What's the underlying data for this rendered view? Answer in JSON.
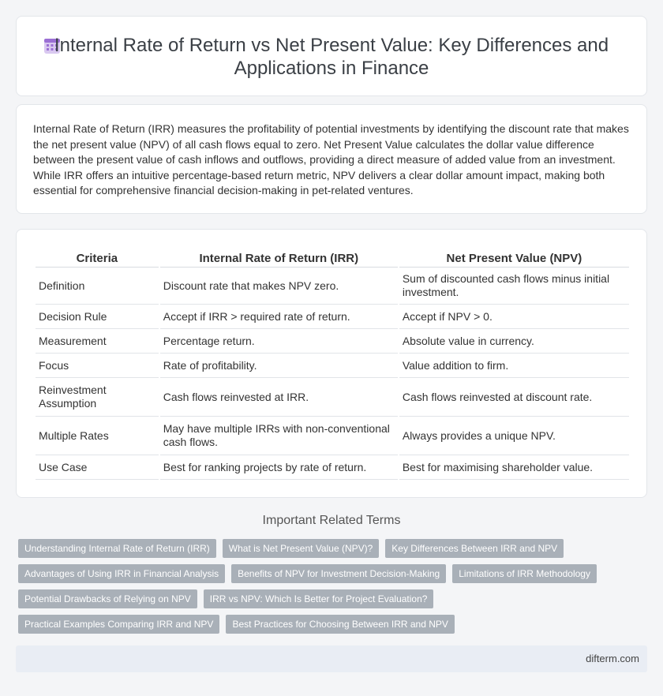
{
  "header": {
    "icon": "calendar-grid-icon",
    "title": "Internal Rate of Return vs Net Present Value: Key Differences and Applications in Finance"
  },
  "intro": {
    "text": "Internal Rate of Return (IRR) measures the profitability of potential investments by identifying the discount rate that makes the net present value (NPV) of all cash flows equal to zero. Net Present Value calculates the dollar value difference between the present value of cash inflows and outflows, providing a direct measure of added value from an investment. While IRR offers an intuitive percentage-based return metric, NPV delivers a clear dollar amount impact, making both essential for comprehensive financial decision-making in pet-related ventures."
  },
  "table": {
    "headers": [
      "Criteria",
      "Internal Rate of Return (IRR)",
      "Net Present Value (NPV)"
    ],
    "rows": [
      [
        "Definition",
        "Discount rate that makes NPV zero.",
        "Sum of discounted cash flows minus initial investment."
      ],
      [
        "Decision Rule",
        "Accept if IRR > required rate of return.",
        "Accept if NPV > 0."
      ],
      [
        "Measurement",
        "Percentage return.",
        "Absolute value in currency."
      ],
      [
        "Focus",
        "Rate of profitability.",
        "Value addition to firm."
      ],
      [
        "Reinvestment Assumption",
        "Cash flows reinvested at IRR.",
        "Cash flows reinvested at discount rate."
      ],
      [
        "Multiple Rates",
        "May have multiple IRRs with non-conventional cash flows.",
        "Always provides a unique NPV."
      ],
      [
        "Use Case",
        "Best for ranking projects by rate of return.",
        "Best for maximising shareholder value."
      ]
    ]
  },
  "related": {
    "title": "Important Related Terms",
    "tags": [
      "Understanding Internal Rate of Return (IRR)",
      "What is Net Present Value (NPV)?",
      "Key Differences Between IRR and NPV",
      "Advantages of Using IRR in Financial Analysis",
      "Benefits of NPV for Investment Decision-Making",
      "Limitations of IRR Methodology",
      "Potential Drawbacks of Relying on NPV",
      "IRR vs NPV: Which Is Better for Project Evaluation?",
      "Practical Examples Comparing IRR and NPV",
      "Best Practices for Choosing Between IRR and NPV"
    ]
  },
  "footer": {
    "site": "difterm.com"
  },
  "colors": {
    "accent": "#9b6fd4",
    "tag_bg": "#a9b0b8",
    "footer_bg": "#e9edf4"
  }
}
